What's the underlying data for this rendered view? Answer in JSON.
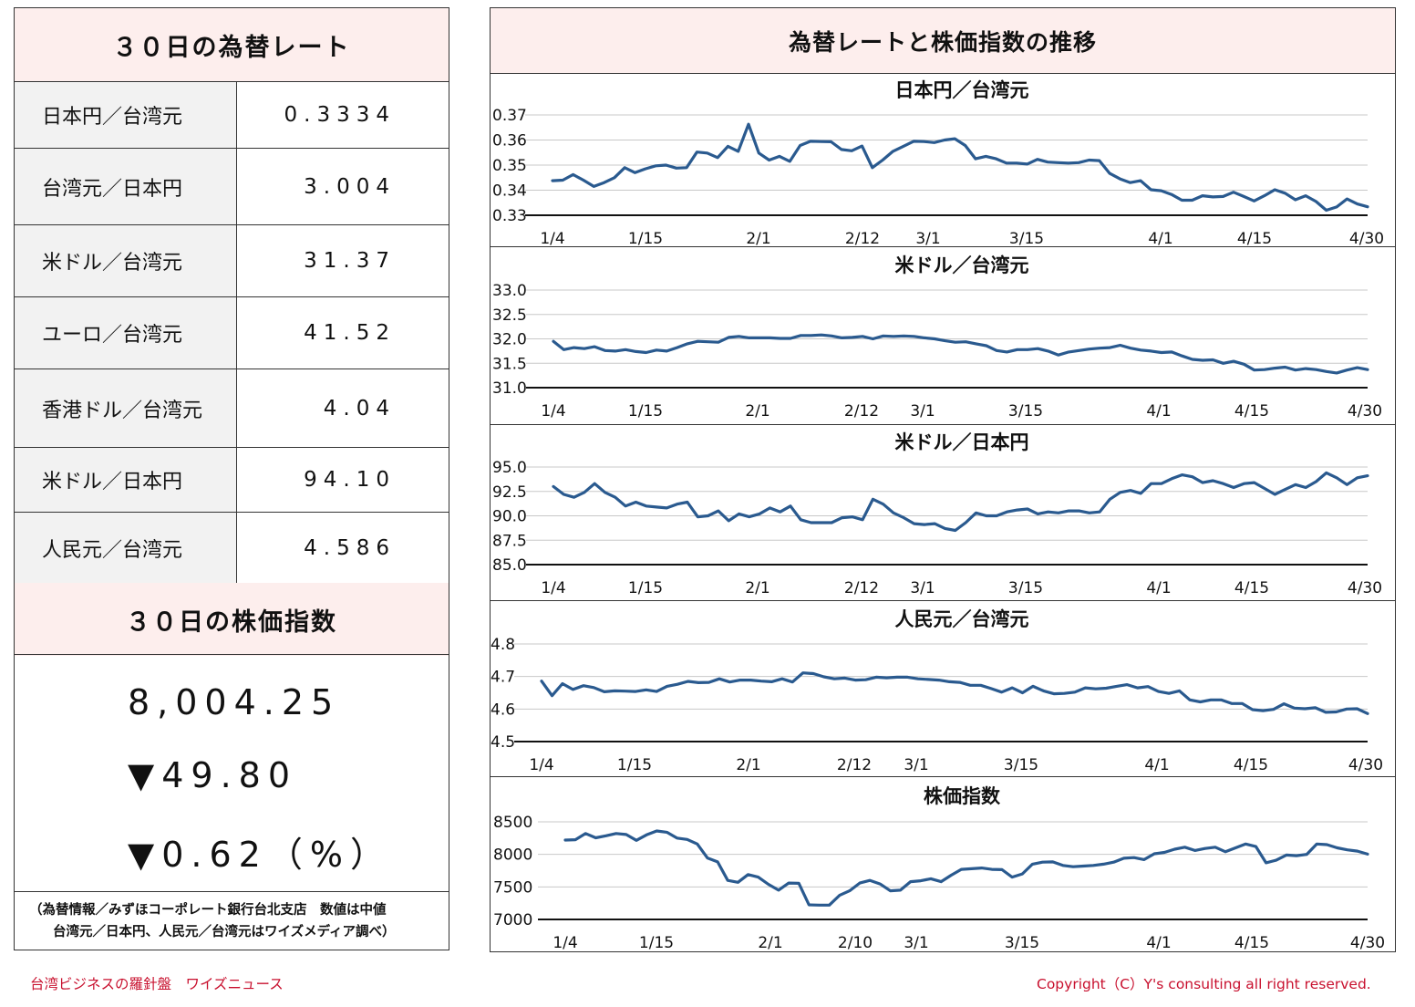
{
  "left": {
    "rates_title": "３０日の為替レート",
    "rates": [
      {
        "name": "日本円／台湾元",
        "value": "0.3334"
      },
      {
        "name": "台湾元／日本円",
        "value": "3.004"
      },
      {
        "name": "米ドル／台湾元",
        "value": "31.37"
      },
      {
        "name": "ユーロ／台湾元",
        "value": "41.52"
      },
      {
        "name": "香港ドル／台湾元",
        "value": "4.04"
      },
      {
        "name": "米ドル／日本円",
        "value": "94.10"
      },
      {
        "name": "人民元／台湾元",
        "value": "4.586"
      }
    ],
    "stock_title": "３０日の株価指数",
    "stock_value": "8,004.25",
    "stock_change": "▼49.80",
    "stock_change_pct": "▼0.62（%）",
    "note_line1": "（為替情報／みずほコーポレート銀行台北支店　数値は中値",
    "note_line2": "台湾元／日本円、人民元／台湾元はワイズメディア調べ）"
  },
  "right": {
    "title": "為替レートと株価指数の推移"
  },
  "footer": {
    "left": "台湾ビジネスの羅針盤　ワイズニュース",
    "right": "Copyright（C）Y's consulting all right reserved."
  },
  "colors": {
    "line": "#2a5a8f",
    "header_bg": "#fdeeed",
    "footer_text": "#c8102e"
  },
  "chart_data": [
    {
      "type": "line",
      "title": "日本円／台湾元",
      "ylim": [
        0.33,
        0.37
      ],
      "yticks": [
        "0.37",
        "0.36",
        "0.35",
        "0.34",
        "0.33"
      ],
      "xticks": [
        "1/4",
        "1/15",
        "2/1",
        "2/12",
        "3/1",
        "3/15",
        "4/1",
        "4/15",
        "4/30"
      ],
      "values": [
        0.3438,
        0.344,
        0.3462,
        0.344,
        0.3415,
        0.343,
        0.345,
        0.349,
        0.347,
        0.3485,
        0.3497,
        0.35,
        0.3488,
        0.349,
        0.3552,
        0.3548,
        0.353,
        0.3575,
        0.3555,
        0.3663,
        0.3548,
        0.352,
        0.3535,
        0.3515,
        0.3578,
        0.3595,
        0.3594,
        0.3593,
        0.3562,
        0.3557,
        0.3576,
        0.349,
        0.352,
        0.3555,
        0.3575,
        0.3595,
        0.3594,
        0.359,
        0.36,
        0.3605,
        0.3578,
        0.3525,
        0.3535,
        0.3525,
        0.3508,
        0.3508,
        0.3504,
        0.3523,
        0.3512,
        0.351,
        0.3508,
        0.351,
        0.352,
        0.3518,
        0.3467,
        0.3445,
        0.343,
        0.3438,
        0.3402,
        0.3398,
        0.3383,
        0.336,
        0.336,
        0.3378,
        0.3373,
        0.3375,
        0.3392,
        0.3375,
        0.3357,
        0.3378,
        0.3402,
        0.3388,
        0.3362,
        0.3378,
        0.3355,
        0.332,
        0.3333,
        0.3365,
        0.3345,
        0.3334
      ]
    },
    {
      "type": "line",
      "title": "米ドル／台湾元",
      "ylim": [
        31.0,
        33.0
      ],
      "yticks": [
        "33.0",
        "32.5",
        "32.0",
        "31.5",
        "31.0"
      ],
      "xticks": [
        "1/4",
        "1/15",
        "2/1",
        "2/12",
        "3/1",
        "3/15",
        "4/1",
        "4/15",
        "4/30"
      ],
      "values": [
        31.95,
        31.78,
        31.82,
        31.8,
        31.84,
        31.76,
        31.75,
        31.78,
        31.74,
        31.72,
        31.77,
        31.75,
        31.82,
        31.9,
        31.95,
        31.94,
        31.93,
        32.03,
        32.05,
        32.02,
        32.02,
        32.02,
        32.01,
        32.01,
        32.07,
        32.07,
        32.08,
        32.06,
        32.02,
        32.03,
        32.05,
        32.0,
        32.06,
        32.05,
        32.06,
        32.05,
        32.02,
        32.0,
        31.96,
        31.93,
        31.94,
        31.9,
        31.86,
        31.76,
        31.73,
        31.78,
        31.78,
        31.8,
        31.75,
        31.67,
        31.73,
        31.76,
        31.79,
        31.81,
        31.82,
        31.87,
        31.81,
        31.77,
        31.75,
        31.72,
        31.73,
        31.65,
        31.58,
        31.56,
        31.57,
        31.5,
        31.54,
        31.48,
        31.36,
        31.37,
        31.4,
        31.42,
        31.36,
        31.39,
        31.37,
        31.33,
        31.3,
        31.36,
        31.41,
        31.37
      ]
    },
    {
      "type": "line",
      "title": "米ドル／日本円",
      "ylim": [
        85.0,
        95.0
      ],
      "yticks": [
        "95.0",
        "92.5",
        "90.0",
        "87.5",
        "85.0"
      ],
      "xticks": [
        "1/4",
        "1/15",
        "2/1",
        "2/12",
        "3/1",
        "3/15",
        "4/1",
        "4/15",
        "4/30"
      ],
      "values": [
        93.0,
        92.2,
        91.9,
        92.4,
        93.3,
        92.4,
        91.9,
        91.0,
        91.4,
        91.0,
        90.9,
        90.8,
        91.2,
        91.4,
        89.9,
        90.0,
        90.5,
        89.5,
        90.2,
        89.9,
        90.2,
        90.8,
        90.4,
        91.0,
        89.6,
        89.3,
        89.3,
        89.3,
        89.8,
        89.9,
        89.6,
        91.7,
        91.2,
        90.3,
        89.8,
        89.2,
        89.1,
        89.2,
        88.7,
        88.5,
        89.3,
        90.3,
        90.0,
        90.0,
        90.4,
        90.6,
        90.7,
        90.2,
        90.4,
        90.3,
        90.5,
        90.5,
        90.3,
        90.4,
        91.7,
        92.4,
        92.6,
        92.3,
        93.3,
        93.3,
        93.8,
        94.2,
        94.0,
        93.4,
        93.6,
        93.3,
        92.9,
        93.3,
        93.4,
        92.8,
        92.2,
        92.7,
        93.2,
        92.9,
        93.5,
        94.4,
        93.9,
        93.2,
        93.9,
        94.1
      ]
    },
    {
      "type": "line",
      "title": "人民元／台湾元",
      "ylim": [
        4.5,
        4.8
      ],
      "yticks": [
        "4.8",
        "4.7",
        "4.6",
        "4.5"
      ],
      "xticks": [
        "1/4",
        "1/15",
        "2/1",
        "2/12",
        "3/1",
        "3/15",
        "4/1",
        "4/15",
        "4/30"
      ],
      "values": [
        4.686,
        4.641,
        4.678,
        4.66,
        4.672,
        4.666,
        4.653,
        4.656,
        4.655,
        4.654,
        4.659,
        4.654,
        4.67,
        4.676,
        4.685,
        4.681,
        4.682,
        4.693,
        4.683,
        4.689,
        4.689,
        4.686,
        4.684,
        4.693,
        4.683,
        4.711,
        4.709,
        4.699,
        4.693,
        4.695,
        4.689,
        4.69,
        4.698,
        4.696,
        4.698,
        4.698,
        4.693,
        4.691,
        4.689,
        4.684,
        4.682,
        4.673,
        4.673,
        4.663,
        4.652,
        4.665,
        4.65,
        4.67,
        4.656,
        4.647,
        4.648,
        4.652,
        4.665,
        4.662,
        4.664,
        4.67,
        4.675,
        4.665,
        4.669,
        4.654,
        4.648,
        4.656,
        4.628,
        4.622,
        4.628,
        4.628,
        4.617,
        4.617,
        4.598,
        4.595,
        4.599,
        4.616,
        4.603,
        4.601,
        4.604,
        4.59,
        4.591,
        4.6,
        4.601,
        4.586
      ]
    },
    {
      "type": "line",
      "title": "株価指数",
      "ylim": [
        7000,
        8500
      ],
      "yticks": [
        "8500",
        "8000",
        "7500",
        "7000"
      ],
      "xticks": [
        "1/4",
        "1/15",
        "2/1",
        "2/10",
        "3/1",
        "3/15",
        "4/1",
        "4/15",
        "4/30"
      ],
      "values": [
        8220,
        8225,
        8320,
        8255,
        8285,
        8320,
        8305,
        8215,
        8300,
        8360,
        8340,
        8250,
        8230,
        8160,
        7945,
        7885,
        7600,
        7570,
        7690,
        7650,
        7540,
        7450,
        7560,
        7555,
        7225,
        7220,
        7220,
        7370,
        7440,
        7560,
        7600,
        7545,
        7440,
        7450,
        7580,
        7595,
        7625,
        7580,
        7680,
        7770,
        7780,
        7790,
        7770,
        7765,
        7650,
        7700,
        7850,
        7880,
        7885,
        7830,
        7810,
        7820,
        7830,
        7850,
        7880,
        7940,
        7950,
        7920,
        8010,
        8030,
        8080,
        8110,
        8060,
        8090,
        8110,
        8040,
        8100,
        8160,
        8120,
        7870,
        7910,
        7990,
        7980,
        8000,
        8160,
        8150,
        8100,
        8070,
        8050,
        8004
      ]
    }
  ]
}
